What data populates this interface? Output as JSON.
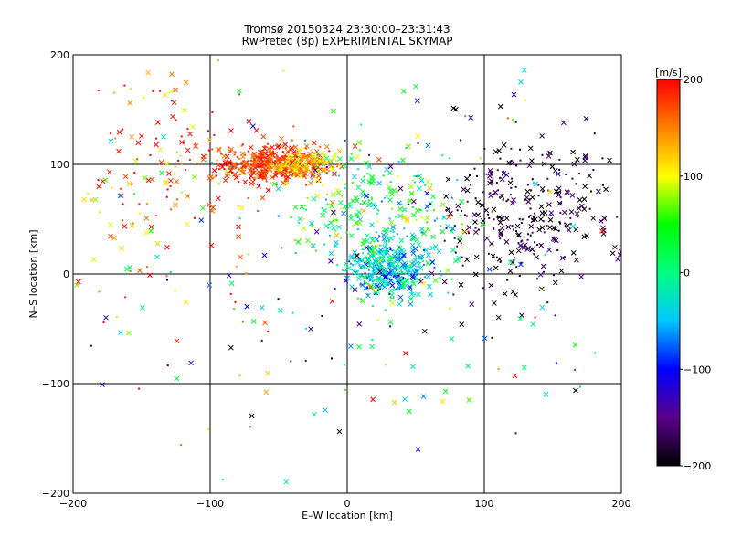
{
  "chart_data": {
    "type": "scatter",
    "title": "Tromsø 20150324 23:30:00–23:31:43",
    "subtitle": "RwPretec (8p) EXPERIMENTAL SKYMAP",
    "xlabel": "E–W location [km]",
    "ylabel": "N–S location [km]",
    "xlim": [
      -200,
      200
    ],
    "ylim": [
      -200,
      200
    ],
    "x_ticks": [
      -200,
      -100,
      0,
      100,
      200
    ],
    "y_ticks": [
      -200,
      -100,
      0,
      100,
      200
    ],
    "x_tick_labels": [
      "−200",
      "−100",
      "0",
      "100",
      "200"
    ],
    "y_tick_labels": [
      "−200",
      "−100",
      "0",
      "100",
      "200"
    ],
    "grid": true,
    "colorbar": {
      "label": "[m/s]",
      "range": [
        -200,
        200
      ],
      "ticks": [
        200,
        100,
        0,
        -100,
        -200
      ],
      "tick_labels": [
        "200",
        "100",
        "0",
        "−100",
        "−200"
      ],
      "colors": [
        "#000000",
        "#5a008c",
        "#0000ff",
        "#00c8ff",
        "#00ff80",
        "#00ff00",
        "#ffff00",
        "#ff8000",
        "#ff0000"
      ]
    },
    "clusters": [
      {
        "x": -57,
        "y": 100,
        "sx": 22,
        "sy": 9,
        "n": 360,
        "v": 180,
        "vs": 25
      },
      {
        "x": -32,
        "y": 100,
        "sx": 12,
        "sy": 6,
        "n": 120,
        "v": 125,
        "vs": 25
      },
      {
        "x": 30,
        "y": 5,
        "sx": 17,
        "sy": 13,
        "n": 380,
        "v": -40,
        "vs": 35
      },
      {
        "x": 20,
        "y": 60,
        "sx": 28,
        "sy": 26,
        "n": 240,
        "v": 25,
        "vs": 55
      },
      {
        "x": 130,
        "y": 55,
        "sx": 32,
        "sy": 35,
        "n": 320,
        "v": -180,
        "vs": 25
      },
      {
        "x": -130,
        "y": 80,
        "sx": 45,
        "sy": 50,
        "n": 170,
        "v": 160,
        "vs": 50
      },
      {
        "x": 0,
        "y": 0,
        "sx": 120,
        "sy": 95,
        "n": 240,
        "v": 0,
        "vs": 130
      }
    ]
  }
}
